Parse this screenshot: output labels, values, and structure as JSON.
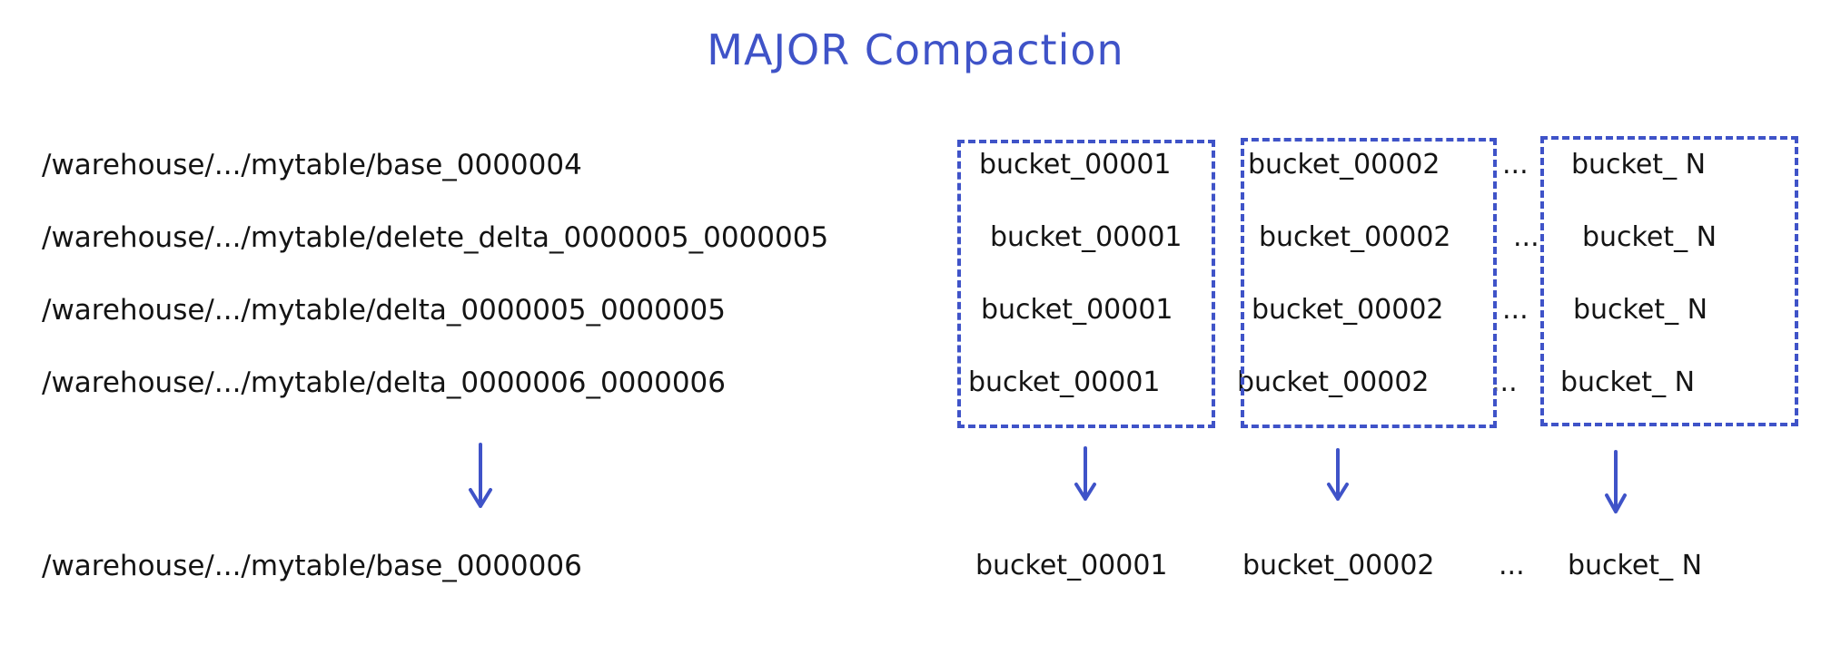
{
  "title": "MAJOR Compaction",
  "colors": {
    "accent": "#3f53c8",
    "text": "#141414"
  },
  "rows": [
    {
      "path": "/warehouse/.../mytable/base_0000004",
      "b1": "bucket_00001",
      "b2": "bucket_00002",
      "dots": "...",
      "bn": "bucket_ N"
    },
    {
      "path": "/warehouse/.../mytable/delete_delta_0000005_0000005",
      "b1": "bucket_00001",
      "b2": "bucket_00002",
      "dots": "...",
      "bn": "bucket_ N"
    },
    {
      "path": "/warehouse/.../mytable/delta_0000005_0000005",
      "b1": "bucket_00001",
      "b2": "bucket_00002",
      "dots": "...",
      "bn": "bucket_ N"
    },
    {
      "path": "/warehouse/.../mytable/delta_0000006_0000006",
      "b1": "bucket_00001",
      "b2": "bucket_00002",
      "dots": "...",
      "bn": "bucket_ N"
    }
  ],
  "result": {
    "path": "/warehouse/.../mytable/base_0000006",
    "b1": "bucket_00001",
    "b2": "bucket_00002",
    "dots": "...",
    "bn": "bucket_ N"
  },
  "arrows": [
    "arrow-down-icon",
    "arrow-down-icon",
    "arrow-down-icon",
    "arrow-down-icon"
  ]
}
